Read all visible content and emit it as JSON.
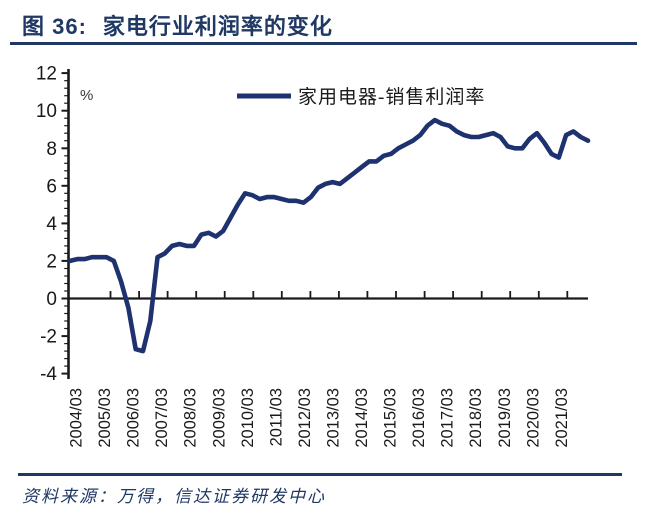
{
  "header": {
    "figure_label": "图 36:",
    "title": "家电行业利润率的变化"
  },
  "chart_data": {
    "type": "line",
    "title": "家电行业利润率的变化",
    "unit_label": "%",
    "xlabel": "",
    "ylabel": "%",
    "ylim": [
      -4,
      12
    ],
    "yticks": [
      12,
      10,
      8,
      6,
      4,
      2,
      0,
      -2,
      -4
    ],
    "ytick_step": 2,
    "grid": "off",
    "legend_position": "top-center",
    "x_tick_labels": [
      "2004/03",
      "2005/03",
      "2006/03",
      "2007/03",
      "2008/03",
      "2009/03",
      "2010/03",
      "2011/03",
      "2012/03",
      "2013/03",
      "2014/03",
      "2015/03",
      "2016/03",
      "2017/03",
      "2018/03",
      "2019/03",
      "2020/03",
      "2021/03"
    ],
    "series": [
      {
        "name": "家用电器-销售利润率",
        "x": [
          "2004/03",
          "2004/06",
          "2004/09",
          "2004/12",
          "2005/03",
          "2005/06",
          "2005/09",
          "2005/12",
          "2006/03",
          "2006/06",
          "2006/09",
          "2006/12",
          "2007/03",
          "2007/06",
          "2007/09",
          "2007/12",
          "2008/03",
          "2008/06",
          "2008/09",
          "2008/12",
          "2009/03",
          "2009/06",
          "2009/09",
          "2009/12",
          "2010/03",
          "2010/06",
          "2010/09",
          "2010/12",
          "2011/03",
          "2011/06",
          "2011/09",
          "2011/12",
          "2012/03",
          "2012/06",
          "2012/09",
          "2012/12",
          "2013/03",
          "2013/06",
          "2013/09",
          "2013/12",
          "2014/03",
          "2014/06",
          "2014/09",
          "2014/12",
          "2015/03",
          "2015/06",
          "2015/09",
          "2015/12",
          "2016/03",
          "2016/06",
          "2016/09",
          "2016/12",
          "2017/03",
          "2017/06",
          "2017/09",
          "2017/12",
          "2018/03",
          "2018/06",
          "2018/09",
          "2018/12",
          "2019/03",
          "2019/06",
          "2019/09",
          "2019/12",
          "2020/03",
          "2020/06",
          "2020/09",
          "2020/12",
          "2021/03",
          "2021/06",
          "2021/09",
          "2021/12"
        ],
        "values": [
          2.0,
          2.1,
          2.1,
          2.2,
          2.2,
          2.2,
          2.0,
          0.9,
          -0.5,
          -2.7,
          -2.8,
          -1.2,
          2.2,
          2.4,
          2.8,
          2.9,
          2.8,
          2.8,
          3.4,
          3.5,
          3.3,
          3.6,
          4.3,
          5.0,
          5.6,
          5.5,
          5.3,
          5.4,
          5.4,
          5.3,
          5.2,
          5.2,
          5.1,
          5.4,
          5.9,
          6.1,
          6.2,
          6.1,
          6.4,
          6.7,
          7.0,
          7.3,
          7.3,
          7.6,
          7.7,
          8.0,
          8.2,
          8.4,
          8.7,
          9.2,
          9.5,
          9.3,
          9.2,
          8.9,
          8.7,
          8.6,
          8.6,
          8.7,
          8.8,
          8.6,
          8.1,
          8.0,
          8.0,
          8.5,
          8.8,
          8.3,
          7.7,
          7.5,
          8.7,
          8.9,
          8.6,
          8.4
        ]
      }
    ],
    "colors": {
      "line": "#1F3270",
      "axis": "#1a1a1a",
      "title": "#1F3864",
      "rule": "#1F3864"
    }
  },
  "footer": {
    "source": "资料来源：万得，信达证券研发中心"
  }
}
